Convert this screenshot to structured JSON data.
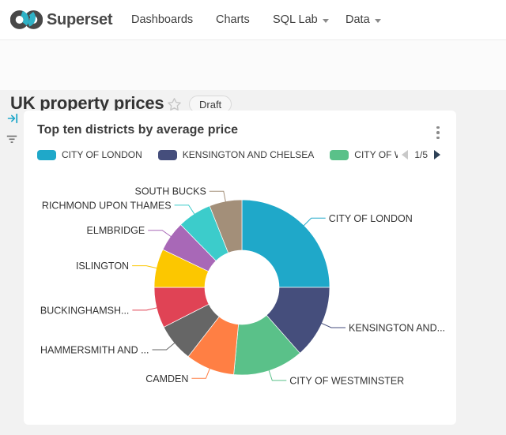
{
  "navbar": {
    "brand": "Superset",
    "items": [
      {
        "label": "Dashboards",
        "has_dropdown": false
      },
      {
        "label": "Charts",
        "has_dropdown": false
      },
      {
        "label": "SQL Lab",
        "has_dropdown": true
      },
      {
        "label": "Data",
        "has_dropdown": true
      }
    ]
  },
  "header": {
    "title": "UK property prices",
    "status": "Draft"
  },
  "icons": {
    "logo": "superset-infinity-logo",
    "favorite": "star-outline-icon",
    "expand_filter_bar": "arrow-right-to-bar-icon",
    "filters": "filter-lines-icon",
    "card_menu": "kebab-vertical-icon",
    "legend_prev": "caret-left-icon",
    "legend_next": "caret-right-icon",
    "nav_dropdown": "chevron-down-icon"
  },
  "colors": {
    "brand_teal": "#20A7C9",
    "page_bg": "#f2f2f2",
    "card_bg": "#ffffff",
    "pager_next": "#2e4156",
    "pager_prev_disabled": "#c9c9c9"
  },
  "card": {
    "title": "Top ten districts by average price",
    "legend": {
      "items": [
        {
          "label": "CITY OF LONDON",
          "color": "#1FA8C9"
        },
        {
          "label": "KENSINGTON AND CHELSEA",
          "color": "#454E7C"
        },
        {
          "label": "CITY OF WES",
          "color": "#5AC189"
        }
      ],
      "page": "1/5"
    }
  },
  "chart_data": {
    "type": "pie",
    "subtype": "donut",
    "title": "Top ten districts by average price",
    "legend_position": "top",
    "legend_page": "1/5",
    "unit": "share_percent_estimated_from_arc_angles",
    "categories": [
      "CITY OF LONDON",
      "KENSINGTON AND CHELSEA",
      "CITY OF WESTMINSTER",
      "CAMDEN",
      "HAMMERSMITH AND FULHAM",
      "BUCKINGHAMSHIRE",
      "ISLINGTON",
      "ELMBRIDGE",
      "RICHMOND UPON THAMES",
      "SOUTH BUCKS"
    ],
    "values": [
      25.0,
      13.5,
      13.0,
      9.0,
      7.0,
      7.5,
      7.1,
      5.6,
      6.3,
      6.0
    ],
    "slices": [
      {
        "name": "CITY OF LONDON",
        "display_label": "CITY OF LONDON",
        "value": 25.0,
        "color": "#1FA8C9"
      },
      {
        "name": "KENSINGTON AND CHELSEA",
        "display_label": "KENSINGTON AND...",
        "value": 13.5,
        "color": "#454E7C"
      },
      {
        "name": "CITY OF WESTMINSTER",
        "display_label": "CITY OF WESTMINSTER",
        "value": 13.0,
        "color": "#5AC189"
      },
      {
        "name": "CAMDEN",
        "display_label": "CAMDEN",
        "value": 9.0,
        "color": "#FF7F44"
      },
      {
        "name": "HAMMERSMITH AND FULHAM",
        "display_label": "HAMMERSMITH AND ...",
        "value": 7.0,
        "color": "#666666"
      },
      {
        "name": "BUCKINGHAMSHIRE",
        "display_label": "BUCKINGHAMSH...",
        "value": 7.5,
        "color": "#E04355"
      },
      {
        "name": "ISLINGTON",
        "display_label": "ISLINGTON",
        "value": 7.1,
        "color": "#FCC700"
      },
      {
        "name": "ELMBRIDGE",
        "display_label": "ELMBRIDGE",
        "value": 5.6,
        "color": "#A868B7"
      },
      {
        "name": "RICHMOND UPON THAMES",
        "display_label": "RICHMOND UPON THAMES",
        "value": 6.3,
        "color": "#3CCCCB"
      },
      {
        "name": "SOUTH BUCKS",
        "display_label": "SOUTH BUCKS",
        "value": 6.0,
        "color": "#A38F79"
      }
    ]
  }
}
